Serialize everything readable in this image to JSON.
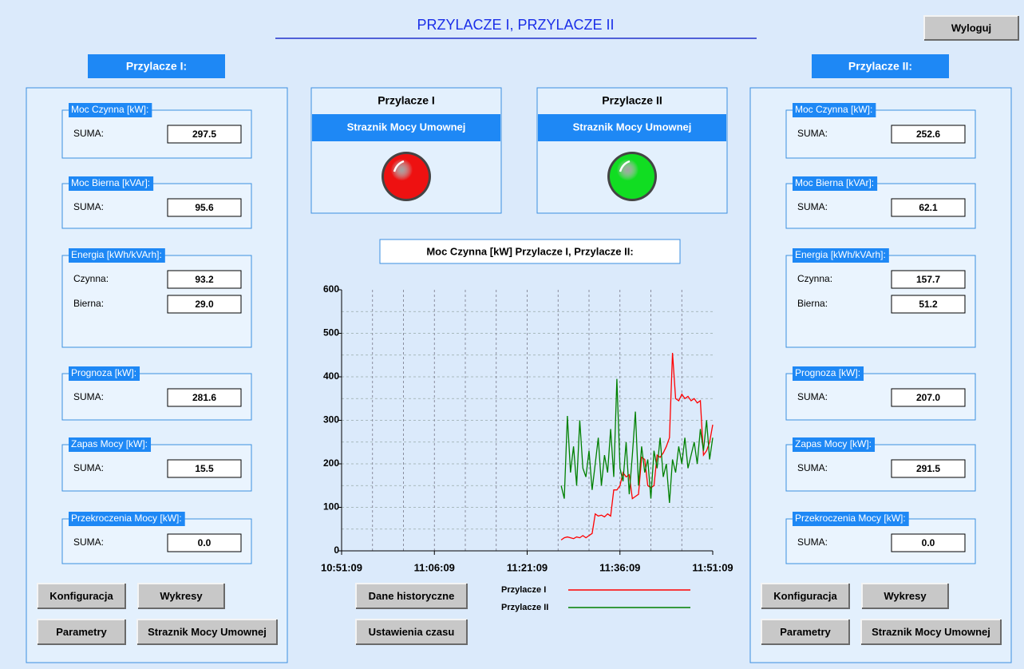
{
  "header": {
    "title": "PRZYLACZE I, PRZYLACZE II",
    "logout": "Wyloguj"
  },
  "panels": [
    {
      "title": "Przylacze I:",
      "groups": [
        {
          "title": "Moc Czynna [kW]:",
          "rows": [
            {
              "label": "SUMA:",
              "value": "297.5"
            }
          ]
        },
        {
          "title": "Moc Bierna [kVAr]:",
          "rows": [
            {
              "label": "SUMA:",
              "value": "95.6"
            }
          ]
        },
        {
          "title": "Energia [kWh/kVArh]:",
          "rows": [
            {
              "label": "Czynna:",
              "value": "93.2"
            },
            {
              "label": "Bierna:",
              "value": "29.0"
            }
          ]
        },
        {
          "title": "Prognoza [kW]:",
          "rows": [
            {
              "label": "SUMA:",
              "value": "281.6"
            }
          ]
        },
        {
          "title": "Zapas Mocy [kW]:",
          "rows": [
            {
              "label": "SUMA:",
              "value": "15.5"
            }
          ]
        },
        {
          "title": "Przekroczenia Mocy [kW]:",
          "rows": [
            {
              "label": "SUMA:",
              "value": "0.0"
            }
          ]
        }
      ],
      "buttons": [
        "Konfiguracja",
        "Wykresy",
        "Parametry",
        "Straznik Mocy Umownej"
      ]
    },
    {
      "title": "Przylacze II:",
      "groups": [
        {
          "title": "Moc Czynna [kW]:",
          "rows": [
            {
              "label": "SUMA:",
              "value": "252.6"
            }
          ]
        },
        {
          "title": "Moc Bierna [kVAr]:",
          "rows": [
            {
              "label": "SUMA:",
              "value": "62.1"
            }
          ]
        },
        {
          "title": "Energia [kWh/kVArh]:",
          "rows": [
            {
              "label": "Czynna:",
              "value": "157.7"
            },
            {
              "label": "Bierna:",
              "value": "51.2"
            }
          ]
        },
        {
          "title": "Prognoza [kW]:",
          "rows": [
            {
              "label": "SUMA:",
              "value": "207.0"
            }
          ]
        },
        {
          "title": "Zapas Mocy [kW]:",
          "rows": [
            {
              "label": "SUMA:",
              "value": "291.5"
            }
          ]
        },
        {
          "title": "Przekroczenia Mocy [kW]:",
          "rows": [
            {
              "label": "SUMA:",
              "value": "0.0"
            }
          ]
        }
      ],
      "buttons": [
        "Konfiguracja",
        "Wykresy",
        "Parametry",
        "Straznik Mocy Umownej"
      ]
    }
  ],
  "status": [
    {
      "title": "Przylacze I",
      "subtitle": "Straznik Mocy Umownej",
      "color": "#ee1111"
    },
    {
      "title": "Przylacze II",
      "subtitle": "Straznik Mocy Umownej",
      "color": "#11dd22"
    }
  ],
  "buttons": [
    "Dane historyczne",
    "Ustawienia czasu"
  ],
  "chart_data": {
    "type": "line",
    "title": "Moc Czynna [kW] Przylacze I, Przylacze II:",
    "x": [
      "11:26:39",
      "11:27:09",
      "11:27:39",
      "11:28:09",
      "11:28:39",
      "11:29:09",
      "11:29:39",
      "11:30:09",
      "11:30:39",
      "11:31:09",
      "11:31:39",
      "11:32:09",
      "11:32:39",
      "11:33:09",
      "11:33:39",
      "11:34:09",
      "11:34:39",
      "11:35:09",
      "11:35:39",
      "11:36:09",
      "11:36:39",
      "11:37:09",
      "11:37:39",
      "11:38:09",
      "11:38:39",
      "11:39:09",
      "11:39:39",
      "11:40:09",
      "11:40:39",
      "11:41:09",
      "11:41:39",
      "11:42:09",
      "11:42:39",
      "11:43:09",
      "11:43:39",
      "11:44:09",
      "11:44:39",
      "11:45:09",
      "11:45:39",
      "11:46:09",
      "11:46:39",
      "11:47:09",
      "11:47:39",
      "11:48:09",
      "11:48:39",
      "11:49:09",
      "11:49:39",
      "11:50:09",
      "11:50:39",
      "11:51:09"
    ],
    "series": [
      {
        "name": "Przylacze I",
        "color": "#ff0000",
        "values": [
          25,
          30,
          32,
          30,
          28,
          32,
          30,
          35,
          30,
          35,
          40,
          85,
          80,
          82,
          78,
          85,
          80,
          140,
          140,
          150,
          180,
          170,
          175,
          120,
          125,
          130,
          215,
          210,
          150,
          145,
          150,
          220,
          215,
          225,
          240,
          260,
          455,
          350,
          345,
          360,
          350,
          355,
          345,
          350,
          340,
          345,
          220,
          230,
          250,
          290
        ]
      },
      {
        "name": "Przylacze II",
        "color": "#008000",
        "values": [
          150,
          120,
          310,
          180,
          240,
          150,
          300,
          190,
          170,
          230,
          140,
          200,
          260,
          150,
          220,
          180,
          280,
          170,
          395,
          190,
          160,
          250,
          130,
          220,
          320,
          150,
          240,
          180,
          210,
          120,
          230,
          190,
          260,
          170,
          200,
          110,
          210,
          180,
          240,
          200,
          260,
          190,
          220,
          250,
          200,
          280,
          230,
          300,
          210,
          260
        ]
      }
    ],
    "xlim": [
      "10:51:09",
      "11:51:09"
    ],
    "xticks": [
      "10:51:09",
      "11:06:09",
      "11:21:09",
      "11:36:09",
      "11:51:09"
    ],
    "xgrid": [
      "10:56:09",
      "11:01:09",
      "11:06:09",
      "11:11:09",
      "11:16:09",
      "11:21:09",
      "11:26:09",
      "11:31:09",
      "11:36:09",
      "11:41:09",
      "11:46:09"
    ],
    "ylim": [
      0,
      600
    ],
    "yticks": [
      0,
      100,
      200,
      300,
      400,
      500,
      600
    ],
    "ygrid": [
      50,
      100,
      150,
      200,
      250,
      300,
      350,
      400,
      450,
      500,
      550
    ],
    "grid": true
  }
}
